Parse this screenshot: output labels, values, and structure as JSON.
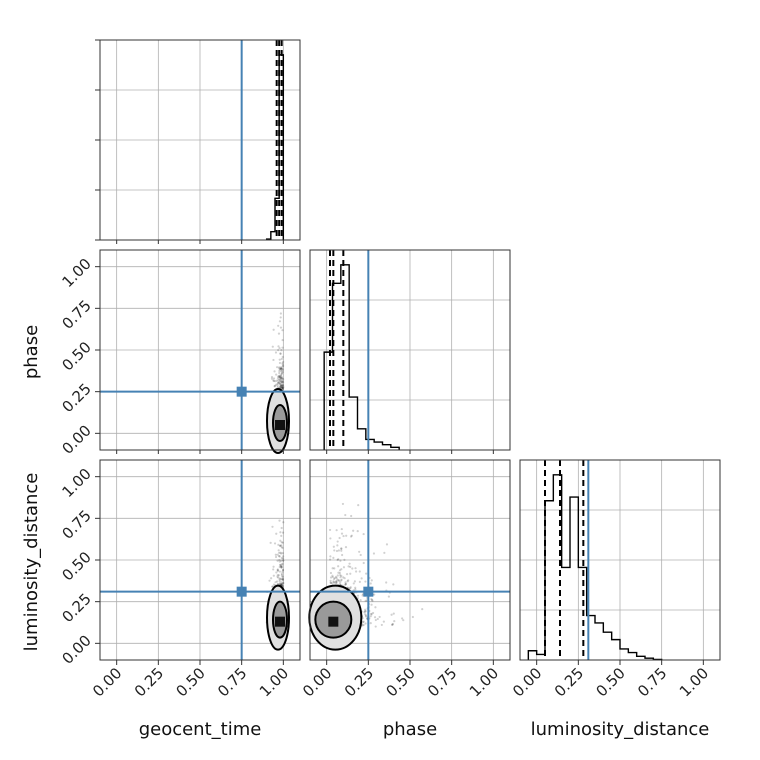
{
  "chart_data": {
    "type": "corner",
    "parameters": [
      "geocent_time",
      "phase",
      "luminosity_distance"
    ],
    "axis_range": [
      -0.1,
      1.1
    ],
    "ticks": [
      0.0,
      0.25,
      0.5,
      0.75,
      1.0
    ],
    "tick_labels": [
      "0.00",
      "0.25",
      "0.50",
      "0.75",
      "1.00"
    ],
    "x_axis_labels": [
      "geocent_time",
      "phase",
      "luminosity_distance"
    ],
    "y_axis_labels": [
      "",
      "phase",
      "luminosity_distance"
    ],
    "grid": true,
    "colors": {
      "truth": "#4682b4",
      "histogram": "#000000",
      "samples": "#000000",
      "grid": "#b0b0b0"
    },
    "truths": {
      "geocent_time": 0.75,
      "phase": 0.25,
      "luminosity_distance": 0.31
    },
    "marginals": {
      "geocent_time": {
        "bin_edges": [
          0.9,
          0.925,
          0.95,
          0.975,
          1.0
        ],
        "counts": [
          2,
          18,
          90,
          400
        ],
        "quantiles": [
          0.96,
          0.975,
          0.99
        ]
      },
      "phase": {
        "bin_edges": [
          -0.015,
          0.035,
          0.085,
          0.135,
          0.185,
          0.235,
          0.285,
          0.335,
          0.385,
          0.435
        ],
        "counts": [
          0.37,
          0.63,
          0.7,
          0.2,
          0.08,
          0.04,
          0.03,
          0.02,
          0.01
        ],
        "quantiles": [
          0.02,
          0.04,
          0.1
        ]
      },
      "luminosity_distance": {
        "bin_edges": [
          -0.05,
          0.0,
          0.05,
          0.1,
          0.15,
          0.2,
          0.25,
          0.3,
          0.35,
          0.4,
          0.45,
          0.5,
          0.55,
          0.6,
          0.65,
          0.7,
          0.75
        ],
        "counts": [
          0.05,
          0.03,
          0.86,
          1.0,
          0.5,
          0.88,
          0.5,
          0.24,
          0.2,
          0.15,
          0.11,
          0.06,
          0.04,
          0.02,
          0.01,
          0.003
        ],
        "quantiles": [
          0.05,
          0.14,
          0.28
        ]
      }
    },
    "scatter": [
      {
        "x": "geocent_time",
        "y": "phase",
        "x_range": [
          0.93,
          1.0
        ],
        "y_range": [
          0.0,
          0.72
        ],
        "core": [
          0.98,
          0.05
        ]
      },
      {
        "x": "geocent_time",
        "y": "luminosity_distance",
        "x_range": [
          0.9,
          1.0
        ],
        "y_range": [
          0.0,
          0.85
        ],
        "core": [
          0.98,
          0.13
        ]
      },
      {
        "x": "phase",
        "y": "luminosity_distance",
        "x_range": [
          -0.02,
          0.72
        ],
        "y_range": [
          0.0,
          0.85
        ],
        "core": [
          0.04,
          0.13
        ]
      }
    ]
  }
}
